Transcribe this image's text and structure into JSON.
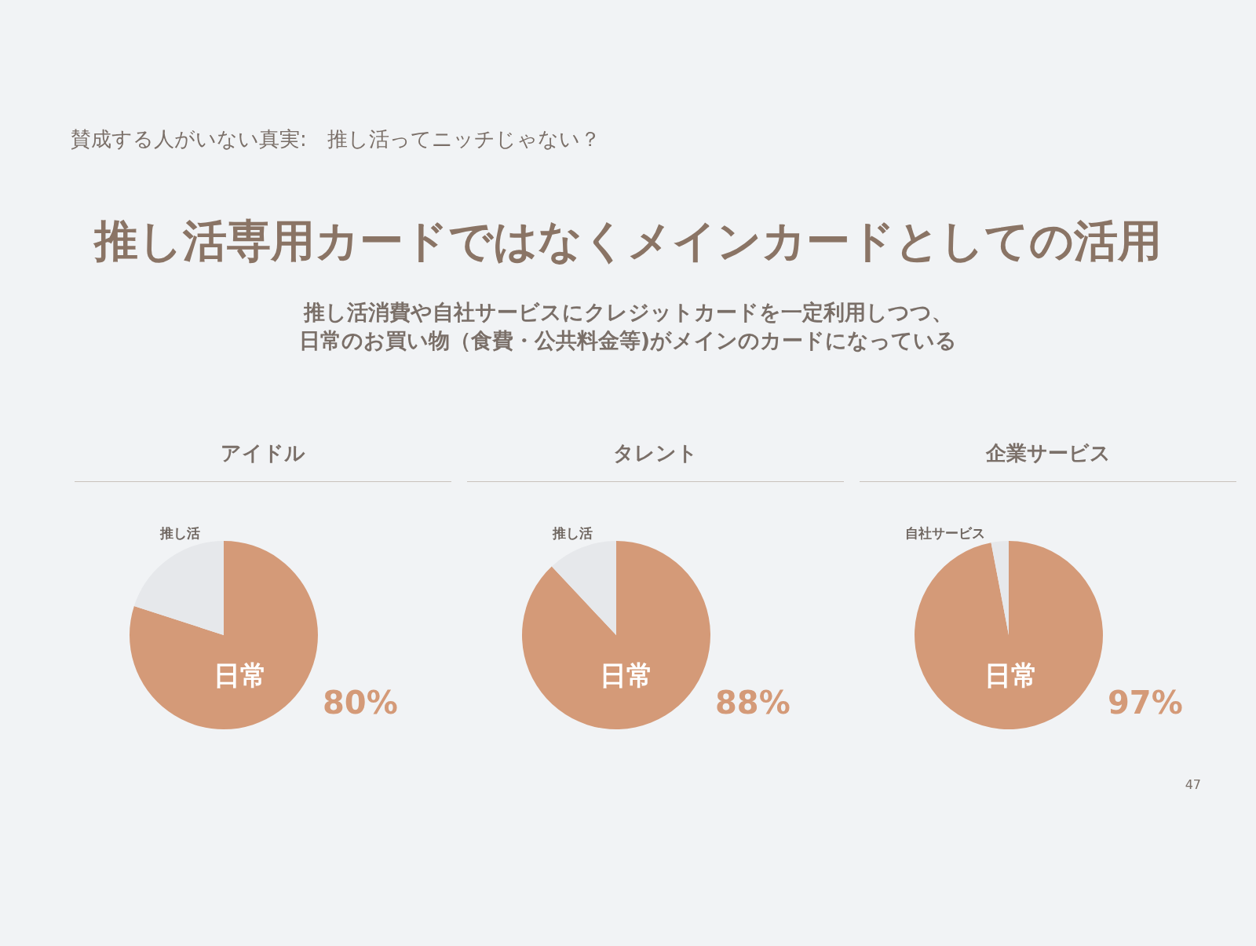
{
  "chart_data": [
    {
      "type": "other",
      "title": "推し活専用カードではなくメインカードとしての活用",
      "subtitle": "推し活消費や自社サービスにクレジットカードを一定利用しつつ、",
      "annotations": [
        "賛成する人がいない真実:　推し活ってニッチじゃない？",
        "47",
        "日常のお買い物（食費・公共料金等)がメインのカードになっている"
      ]
    },
    {
      "type": "pie",
      "title": "アイドル",
      "categories": [
        "日常",
        "推し活"
      ],
      "values": [
        80,
        20
      ],
      "colors": [
        "#d49a78",
        "#e6e8eb"
      ],
      "value_labels": [
        "80%",
        null
      ],
      "legend": false
    },
    {
      "type": "pie",
      "title": "タレント",
      "categories": [
        "日常",
        "推し活"
      ],
      "values": [
        88,
        12
      ],
      "colors": [
        "#d49a78",
        "#e6e8eb"
      ],
      "value_labels": [
        "88%",
        null
      ],
      "legend": false
    },
    {
      "type": "pie",
      "title": "企業サービス",
      "categories": [
        "日常",
        "自社サービス"
      ],
      "values": [
        97,
        3
      ],
      "colors": [
        "#d49a78",
        "#e6e8eb"
      ],
      "value_labels": [
        "97%",
        null
      ],
      "legend": false
    }
  ]
}
